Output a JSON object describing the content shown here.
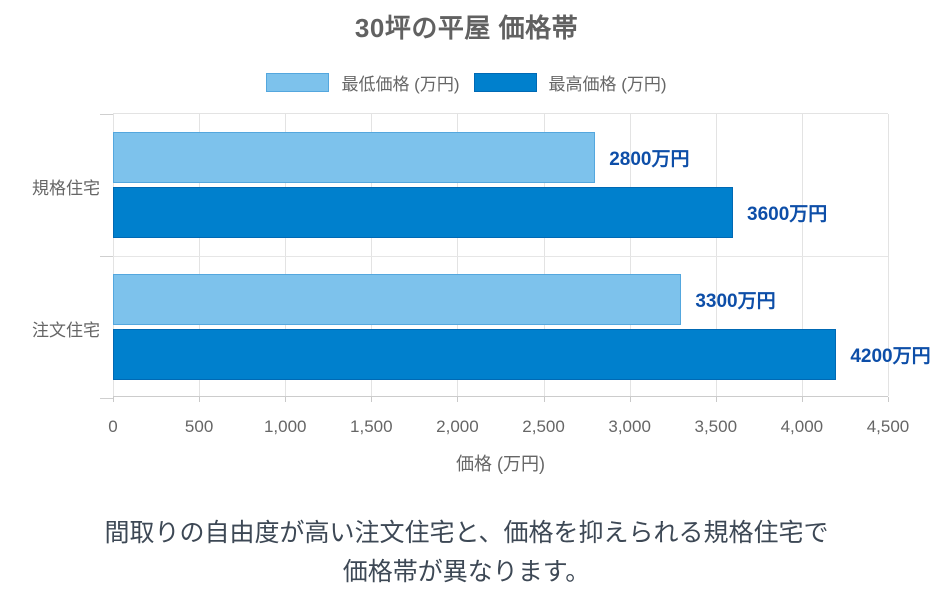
{
  "header": {
    "title": "30坪の平屋 価格帯"
  },
  "legend": [
    {
      "label": "最低価格 (万円)",
      "color": "#7dc2ec",
      "border_color": "#54a7de"
    },
    {
      "label": "最高価格 (万円)",
      "color": "#0080cd",
      "border_color": "#0069b4"
    }
  ],
  "chart_data": {
    "type": "bar",
    "orientation": "horizontal",
    "title": "30坪の平屋 価格帯",
    "categories": [
      "規格住宅",
      "注文住宅"
    ],
    "series": [
      {
        "name": "最低価格 (万円)",
        "values": [
          2800,
          3300
        ],
        "color": "#7dc2ec",
        "border_color": "#54a7de"
      },
      {
        "name": "最高価格 (万円)",
        "values": [
          3600,
          4200
        ],
        "color": "#0080cd",
        "border_color": "#0069b4"
      }
    ],
    "value_labels": [
      [
        "2800万円",
        "3600万円"
      ],
      [
        "3300万円",
        "4200万円"
      ]
    ],
    "xlabel": "価格 (万円)",
    "ylabel": "",
    "xlim": [
      0,
      4500
    ],
    "x_ticks": [
      "0",
      "500",
      "1,000",
      "1,500",
      "2,000",
      "2,500",
      "3,000",
      "3,500",
      "4,000",
      "4,500"
    ],
    "grid": true,
    "legend_position": "top"
  },
  "caption": {
    "line1": "間取りの自由度が高い注文住宅と、価格を抑えられる規格住宅で",
    "line2": "価格帯が異なります。"
  },
  "colors": {
    "title_text": "#616161",
    "axis_text": "#666666",
    "value_label_text": "#0d4ea8",
    "caption_text": "#3d4855",
    "gridline": "#e3e3e3",
    "axis_line": "#cccccc",
    "background": "#ffffff"
  }
}
